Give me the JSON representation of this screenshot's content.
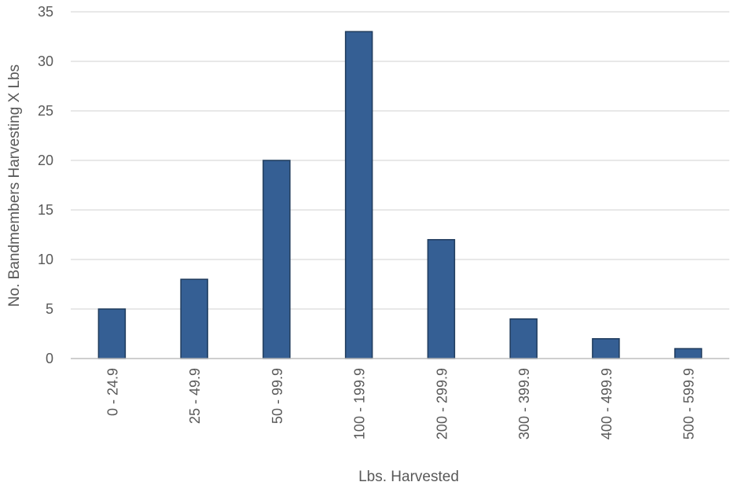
{
  "chart_data": {
    "type": "bar",
    "title": "",
    "xlabel": "Lbs. Harvested",
    "ylabel": "No. Bandmembers Harvesting X Lbs",
    "categories": [
      "0 - 24.9",
      "25 - 49.9",
      "50 - 99.9",
      "100 - 199.9",
      "200 - 299.9",
      "300 - 399.9",
      "400 - 499.9",
      "500 - 599.9"
    ],
    "values": [
      5,
      8,
      20,
      33,
      12,
      4,
      2,
      1
    ],
    "ylim": [
      0,
      35
    ],
    "yticks": [
      0,
      5,
      10,
      15,
      20,
      25,
      30,
      35
    ],
    "grid": true,
    "legend": "none",
    "colors": {
      "bar_fill": "#355f94",
      "bar_stroke": "#1f3b5c",
      "gridline": "#d9d9d9",
      "axis_line": "#bfbfbf",
      "text": "#595959"
    }
  }
}
